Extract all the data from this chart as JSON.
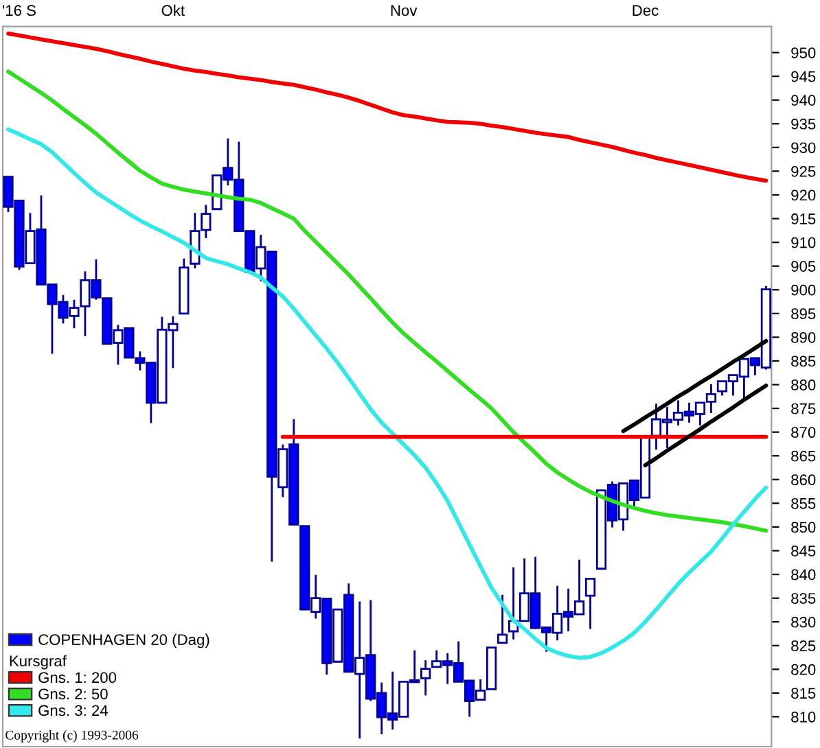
{
  "chart_data": {
    "type": "candlestick",
    "categories": [
      null,
      "'16 S",
      null,
      null,
      null,
      null,
      null,
      null,
      null,
      null,
      null,
      null,
      null,
      null,
      null,
      "Okt",
      null,
      null,
      null,
      null,
      null,
      null,
      null,
      null,
      null,
      null,
      null,
      null,
      null,
      null,
      null,
      null,
      null,
      null,
      null,
      null,
      "Nov",
      null,
      null,
      null,
      null,
      null,
      null,
      null,
      null,
      null,
      null,
      null,
      null,
      null,
      null,
      null,
      null,
      null,
      null,
      null,
      null,
      null,
      "Dec",
      null,
      null,
      null,
      null,
      null,
      null,
      null,
      null,
      null,
      null,
      null
    ],
    "ylim": [
      803.7,
      955.5
    ],
    "yticks": [
      810,
      815,
      820,
      825,
      830,
      835,
      840,
      845,
      850,
      855,
      860,
      865,
      870,
      875,
      880,
      885,
      890,
      895,
      900,
      905,
      910,
      915,
      920,
      925,
      930,
      935,
      940,
      945,
      950
    ],
    "legend": "bottom left",
    "legend_title": "Kursgraf",
    "annotations": [
      "Copyright (c) 1993-2006"
    ],
    "series": [
      {
        "name": "COPENHAGEN 20 (Dag)",
        "color": "#0000ff",
        "colors": [
          "#0000ff",
          "#0000ff",
          "#ffffff",
          "#0000ff",
          "#0000ff",
          "#0000ff",
          "#ffffff",
          "#ffffff",
          "#0000ff",
          "#0000ff",
          "#ffffff",
          "#0000ff",
          "#0000ff",
          "#0000ff",
          "#ffffff",
          "#ffffff",
          "#ffffff",
          "#ffffff",
          "#ffffff",
          "#ffffff",
          "#0000ff",
          "#0000ff",
          "#0000ff",
          "#ffffff",
          "#0000ff",
          "#ffffff",
          "#0000ff",
          "#0000ff",
          "#ffffff",
          "#0000ff",
          "#ffffff",
          "#0000ff",
          "#ffffff",
          "#0000ff",
          "#0000ff",
          "#0000ff",
          "#ffffff",
          "#ffffff",
          "#ffffff",
          "#ffffff",
          "#0000ff",
          "#0000ff",
          "#0000ff",
          "#ffffff",
          "#ffffff",
          "#ffffff",
          "#ffffff",
          "#ffffff",
          "#0000ff",
          "#0000ff",
          "#ffffff",
          "#0000ff",
          "#ffffff",
          "#ffffff",
          "#ffffff",
          "#0000ff",
          "#ffffff",
          "#0000ff",
          "#ffffff",
          "#ffffff",
          "#ffffff",
          "#ffffff",
          "#0000ff",
          "#ffffff",
          "#ffffff",
          "#ffffff",
          "#ffffff",
          "#ffffff",
          "#0000ff",
          "#ffffff"
        ],
        "ohlc": [
          [
            923.8,
            923.8,
            916.4,
            917.5
          ],
          [
            918.8,
            918.8,
            904.2,
            904.9
          ],
          [
            905.6,
            916.2,
            905.6,
            912.4
          ],
          [
            912.7,
            919.9,
            901.1,
            901.1
          ],
          [
            901.1,
            901.1,
            886.5,
            897.0
          ],
          [
            897.4,
            898.9,
            892.9,
            894.1
          ],
          [
            894.5,
            897.9,
            891.9,
            896.2
          ],
          [
            896.5,
            903.9,
            890.2,
            902.0
          ],
          [
            902.0,
            906.4,
            897.9,
            898.4
          ],
          [
            898.2,
            898.2,
            888.6,
            888.6
          ],
          [
            888.8,
            892.6,
            884.2,
            891.5
          ],
          [
            891.9,
            891.9,
            885.7,
            885.7
          ],
          [
            885.6,
            887.0,
            883.0,
            884.6
          ],
          [
            884.6,
            884.6,
            871.9,
            876.2
          ],
          [
            876.2,
            894.3,
            876.2,
            891.6
          ],
          [
            891.5,
            894.4,
            883.5,
            892.8
          ],
          [
            895.0,
            906.6,
            895.0,
            904.7
          ],
          [
            905.5,
            916.2,
            904.5,
            912.4
          ],
          [
            912.6,
            917.9,
            910.9,
            916.0
          ],
          [
            917.0,
            924.1,
            917.0,
            924.1
          ],
          [
            925.7,
            931.9,
            922.0,
            923.2
          ],
          [
            923.2,
            931.2,
            912.4,
            912.4
          ],
          [
            912.4,
            912.4,
            903.7,
            903.7
          ],
          [
            904.5,
            911.6,
            901.8,
            909.0
          ],
          [
            908.0,
            908.0,
            842.7,
            860.6
          ],
          [
            858.4,
            867.4,
            856.3,
            866.4
          ],
          [
            867.4,
            872.7,
            850.5,
            850.5
          ],
          [
            850.2,
            850.2,
            832.6,
            832.6
          ],
          [
            832.1,
            839.9,
            830.7,
            835.0
          ],
          [
            834.9,
            834.9,
            818.9,
            821.3
          ],
          [
            821.6,
            832.6,
            821.6,
            832.6
          ],
          [
            835.7,
            838.1,
            819.5,
            819.5
          ],
          [
            819.0,
            834.3,
            805.4,
            822.4
          ],
          [
            823.0,
            834.6,
            813.3,
            813.8
          ],
          [
            815.0,
            817.2,
            806.3,
            809.9
          ],
          [
            810.7,
            819.5,
            807.3,
            809.4
          ],
          [
            810.0,
            817.4,
            810.0,
            817.4
          ],
          [
            817.3,
            824.0,
            817.3,
            817.7
          ],
          [
            818.1,
            821.9,
            814.5,
            820.1
          ],
          [
            820.5,
            824.0,
            820.5,
            821.7
          ],
          [
            821.7,
            823.4,
            816.9,
            820.9
          ],
          [
            821.3,
            825.9,
            817.4,
            817.4
          ],
          [
            817.6,
            817.6,
            810.0,
            813.3
          ],
          [
            813.6,
            817.9,
            813.6,
            815.5
          ],
          [
            815.8,
            824.6,
            815.8,
            824.6
          ],
          [
            825.6,
            835.7,
            825.6,
            827.3
          ],
          [
            828.0,
            841.5,
            826.3,
            830.2
          ],
          [
            830.2,
            843.4,
            830.2,
            836.0
          ],
          [
            836.0,
            843.7,
            828.5,
            828.7
          ],
          [
            828.8,
            828.8,
            823.7,
            827.8
          ],
          [
            827.7,
            837.6,
            826.1,
            831.7
          ],
          [
            832.1,
            837.0,
            828.0,
            831.1
          ],
          [
            831.6,
            843.1,
            831.6,
            834.3
          ],
          [
            835.5,
            839.1,
            828.5,
            839.1
          ],
          [
            841.2,
            857.7,
            841.2,
            857.7
          ],
          [
            858.9,
            859.6,
            849.9,
            851.4
          ],
          [
            851.6,
            859.2,
            849.2,
            859.2
          ],
          [
            859.8,
            859.8,
            854.0,
            855.7
          ],
          [
            856.2,
            869.0,
            856.2,
            869.0
          ],
          [
            869.2,
            876.0,
            866.3,
            872.7
          ],
          [
            872.1,
            875.3,
            866.6,
            872.6
          ],
          [
            872.6,
            876.7,
            871.4,
            874.1
          ],
          [
            874.3,
            876.2,
            872.0,
            873.5
          ],
          [
            873.8,
            876.2,
            871.4,
            876.2
          ],
          [
            876.4,
            880.1,
            874.0,
            878.0
          ],
          [
            878.6,
            880.7,
            877.7,
            880.7
          ],
          [
            880.7,
            882.0,
            877.7,
            882.0
          ],
          [
            881.7,
            885.4,
            877.2,
            885.4
          ],
          [
            885.6,
            885.6,
            882.0,
            884.1
          ],
          [
            883.6,
            900.8,
            883.2,
            900.1
          ]
        ]
      },
      {
        "type": "line",
        "name": "Gns. 1: 200",
        "color": "#f00000",
        "values": [
          954.0,
          953.6,
          953.2,
          952.8,
          952.4,
          952.0,
          951.6,
          951.2,
          950.8,
          950.3,
          949.7,
          949.2,
          948.7,
          948.1,
          947.6,
          947.1,
          946.6,
          946.2,
          945.9,
          945.5,
          945.2,
          944.8,
          944.5,
          944.2,
          943.8,
          943.5,
          943.2,
          942.7,
          942.2,
          941.6,
          941.1,
          940.5,
          939.8,
          939.0,
          938.2,
          937.4,
          936.8,
          936.5,
          936.1,
          935.7,
          935.4,
          935.3,
          935.2,
          935.0,
          934.6,
          934.3,
          933.9,
          933.5,
          933.1,
          932.8,
          932.5,
          932.2,
          931.6,
          931.1,
          930.6,
          930.1,
          929.5,
          928.9,
          928.4,
          927.8,
          927.3,
          926.8,
          926.3,
          925.8,
          925.3,
          924.8,
          924.3,
          923.8,
          923.4,
          923.0
        ]
      },
      {
        "type": "line",
        "name": "Gns. 2: 50",
        "color": "#33dd22",
        "values": [
          946.0,
          944.5,
          943.0,
          941.5,
          939.9,
          938.1,
          936.4,
          934.7,
          932.9,
          930.9,
          928.9,
          927.0,
          925.1,
          923.7,
          922.4,
          921.7,
          921.1,
          920.7,
          920.3,
          919.9,
          919.5,
          919.2,
          919.0,
          918.3,
          917.2,
          916.1,
          915.0,
          912.4,
          910.1,
          907.8,
          905.5,
          903.2,
          900.7,
          898.2,
          895.6,
          893.1,
          890.8,
          888.8,
          886.8,
          884.9,
          882.9,
          880.9,
          878.9,
          877.0,
          875.0,
          872.5,
          870.0,
          867.8,
          865.6,
          863.3,
          861.5,
          860.0,
          858.6,
          857.4,
          856.4,
          855.5,
          854.7,
          854.0,
          853.4,
          852.9,
          852.5,
          852.2,
          851.9,
          851.6,
          851.3,
          851.0,
          850.6,
          850.2,
          849.7,
          849.2
        ]
      },
      {
        "type": "line",
        "name": "Gns. 3: 24",
        "color": "#33e8e8",
        "values": [
          933.8,
          932.8,
          931.7,
          930.7,
          929.0,
          926.8,
          924.6,
          922.5,
          920.5,
          919.0,
          917.5,
          916.0,
          914.6,
          913.4,
          912.3,
          911.1,
          909.9,
          908.3,
          906.7,
          906.0,
          905.4,
          904.5,
          903.7,
          902.6,
          900.5,
          898.6,
          896.0,
          893.2,
          890.4,
          887.6,
          884.6,
          881.4,
          878.1,
          874.8,
          872.0,
          869.7,
          867.4,
          865.1,
          862.5,
          859.2,
          855.5,
          850.9,
          846.3,
          841.7,
          837.2,
          833.7,
          830.3,
          828.5,
          826.4,
          824.5,
          823.5,
          822.8,
          822.4,
          822.6,
          823.4,
          824.6,
          826.0,
          827.7,
          830.0,
          832.6,
          835.3,
          838.0,
          840.4,
          842.6,
          844.8,
          847.6,
          850.5,
          853.2,
          855.9,
          858.3
        ]
      },
      {
        "type": "line",
        "color": "#f00000",
        "values": [
          null,
          null,
          null,
          null,
          null,
          null,
          null,
          null,
          null,
          null,
          null,
          null,
          null,
          null,
          null,
          null,
          null,
          null,
          null,
          null,
          null,
          null,
          null,
          null,
          null,
          869,
          869,
          869,
          869,
          869,
          869,
          869,
          869,
          869,
          869,
          869,
          869,
          869,
          869,
          869,
          869,
          869,
          869,
          869,
          869,
          869,
          869,
          869,
          869,
          869,
          869,
          869,
          869,
          869,
          869,
          869,
          869,
          869,
          869,
          869,
          869,
          869,
          869,
          869,
          869,
          869,
          869,
          869,
          869,
          869
        ]
      },
      {
        "type": "line",
        "color": "#000000",
        "values": [
          null,
          null,
          null,
          null,
          null,
          null,
          null,
          null,
          null,
          null,
          null,
          null,
          null,
          null,
          null,
          null,
          null,
          null,
          null,
          null,
          null,
          null,
          null,
          null,
          null,
          null,
          null,
          null,
          null,
          null,
          null,
          null,
          null,
          null,
          null,
          null,
          null,
          null,
          null,
          null,
          null,
          null,
          null,
          null,
          null,
          null,
          null,
          null,
          null,
          null,
          null,
          null,
          null,
          null,
          null,
          null,
          870.2,
          871.6,
          873.1,
          874.5,
          876.0,
          877.5,
          878.9,
          880.4,
          881.8,
          883.3,
          884.8,
          886.2,
          887.7,
          889.2
        ]
      },
      {
        "type": "line",
        "color": "#000000",
        "values": [
          null,
          null,
          null,
          null,
          null,
          null,
          null,
          null,
          null,
          null,
          null,
          null,
          null,
          null,
          null,
          null,
          null,
          null,
          null,
          null,
          null,
          null,
          null,
          null,
          null,
          null,
          null,
          null,
          null,
          null,
          null,
          null,
          null,
          null,
          null,
          null,
          null,
          null,
          null,
          null,
          null,
          null,
          null,
          null,
          null,
          null,
          null,
          null,
          null,
          null,
          null,
          null,
          null,
          null,
          null,
          null,
          null,
          null,
          863.0,
          864.5,
          866.1,
          867.6,
          869.1,
          870.6,
          872.2,
          873.7,
          875.2,
          876.8,
          878.3,
          879.8
        ]
      }
    ]
  }
}
